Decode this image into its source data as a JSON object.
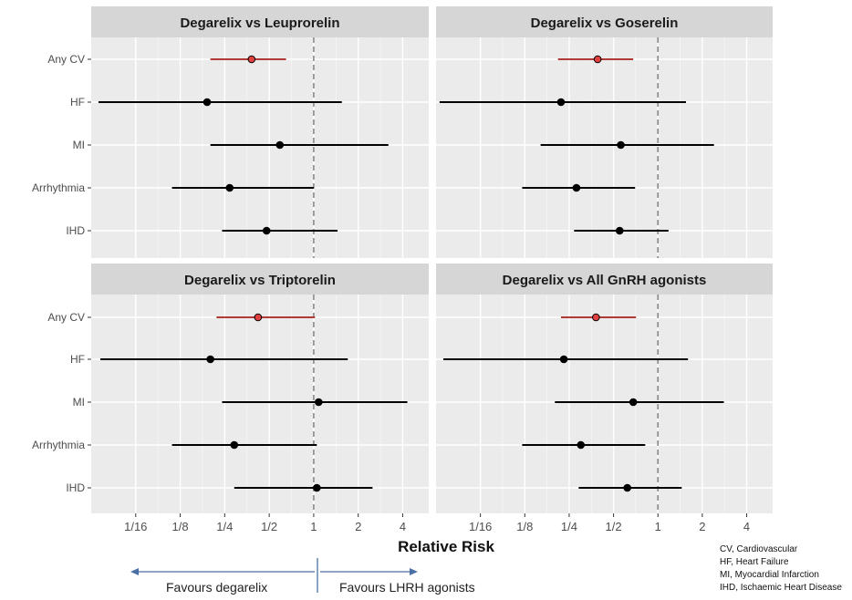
{
  "chart_data": {
    "type": "forest",
    "xlabel": "Relative Risk",
    "x_scale": "log2",
    "xlim": [
      0.03125,
      6.0
    ],
    "ticks": [
      {
        "value": 0.0625,
        "label": "1/16"
      },
      {
        "value": 0.125,
        "label": "1/8"
      },
      {
        "value": 0.25,
        "label": "1/4"
      },
      {
        "value": 0.5,
        "label": "1/2"
      },
      {
        "value": 1,
        "label": "1"
      },
      {
        "value": 2,
        "label": "2"
      },
      {
        "value": 4,
        "label": "4"
      }
    ],
    "reference_line": 1,
    "categories": [
      "Any CV",
      "HF",
      "MI",
      "Arrhythmia",
      "IHD"
    ],
    "highlight_category": "Any CV",
    "highlight_color": "#b03a35",
    "point_highlight_color": "#e04040",
    "default_color": "#000000",
    "panels": [
      {
        "title": "Degarelix vs Leuprorelin",
        "rows": [
          {
            "label": "Any CV",
            "rr": 0.38,
            "lo": 0.2,
            "hi": 0.65
          },
          {
            "label": "HF",
            "rr": 0.19,
            "lo": 0.035,
            "hi": 1.55
          },
          {
            "label": "MI",
            "rr": 0.59,
            "lo": 0.2,
            "hi": 3.2
          },
          {
            "label": "Arrhythmia",
            "rr": 0.27,
            "lo": 0.11,
            "hi": 1.0
          },
          {
            "label": "IHD",
            "rr": 0.48,
            "lo": 0.24,
            "hi": 1.45
          }
        ]
      },
      {
        "title": "Degarelix vs Goserelin",
        "rows": [
          {
            "label": "Any CV",
            "rr": 0.39,
            "lo": 0.21,
            "hi": 0.68
          },
          {
            "label": "HF",
            "rr": 0.22,
            "lo": 0.033,
            "hi": 1.55
          },
          {
            "label": "MI",
            "rr": 0.56,
            "lo": 0.16,
            "hi": 2.4
          },
          {
            "label": "Arrhythmia",
            "rr": 0.28,
            "lo": 0.12,
            "hi": 0.7
          },
          {
            "label": "IHD",
            "rr": 0.55,
            "lo": 0.27,
            "hi": 1.18
          }
        ]
      },
      {
        "title": "Degarelix vs Triptorelin",
        "rows": [
          {
            "label": "Any CV",
            "rr": 0.42,
            "lo": 0.22,
            "hi": 1.02
          },
          {
            "label": "HF",
            "rr": 0.2,
            "lo": 0.036,
            "hi": 1.7
          },
          {
            "label": "MI",
            "rr": 1.08,
            "lo": 0.24,
            "hi": 4.3
          },
          {
            "label": "Arrhythmia",
            "rr": 0.29,
            "lo": 0.11,
            "hi": 1.05
          },
          {
            "label": "IHD",
            "rr": 1.05,
            "lo": 0.29,
            "hi": 2.5
          }
        ]
      },
      {
        "title": "Degarelix vs All GnRH agonists",
        "rows": [
          {
            "label": "Any CV",
            "rr": 0.38,
            "lo": 0.22,
            "hi": 0.71
          },
          {
            "label": "HF",
            "rr": 0.23,
            "lo": 0.035,
            "hi": 1.6
          },
          {
            "label": "MI",
            "rr": 0.68,
            "lo": 0.2,
            "hi": 2.8
          },
          {
            "label": "Arrhythmia",
            "rr": 0.3,
            "lo": 0.12,
            "hi": 0.82
          },
          {
            "label": "IHD",
            "rr": 0.62,
            "lo": 0.29,
            "hi": 1.45
          }
        ]
      }
    ]
  },
  "notes": [
    "CV, Cardiovascular",
    "HF, Heart Failure",
    "MI, Myocardial Infarction",
    "IHD, Ischaemic Heart Disease"
  ],
  "favours": {
    "left": "Favours degarelix",
    "right": "Favours  LHRH agonists"
  }
}
